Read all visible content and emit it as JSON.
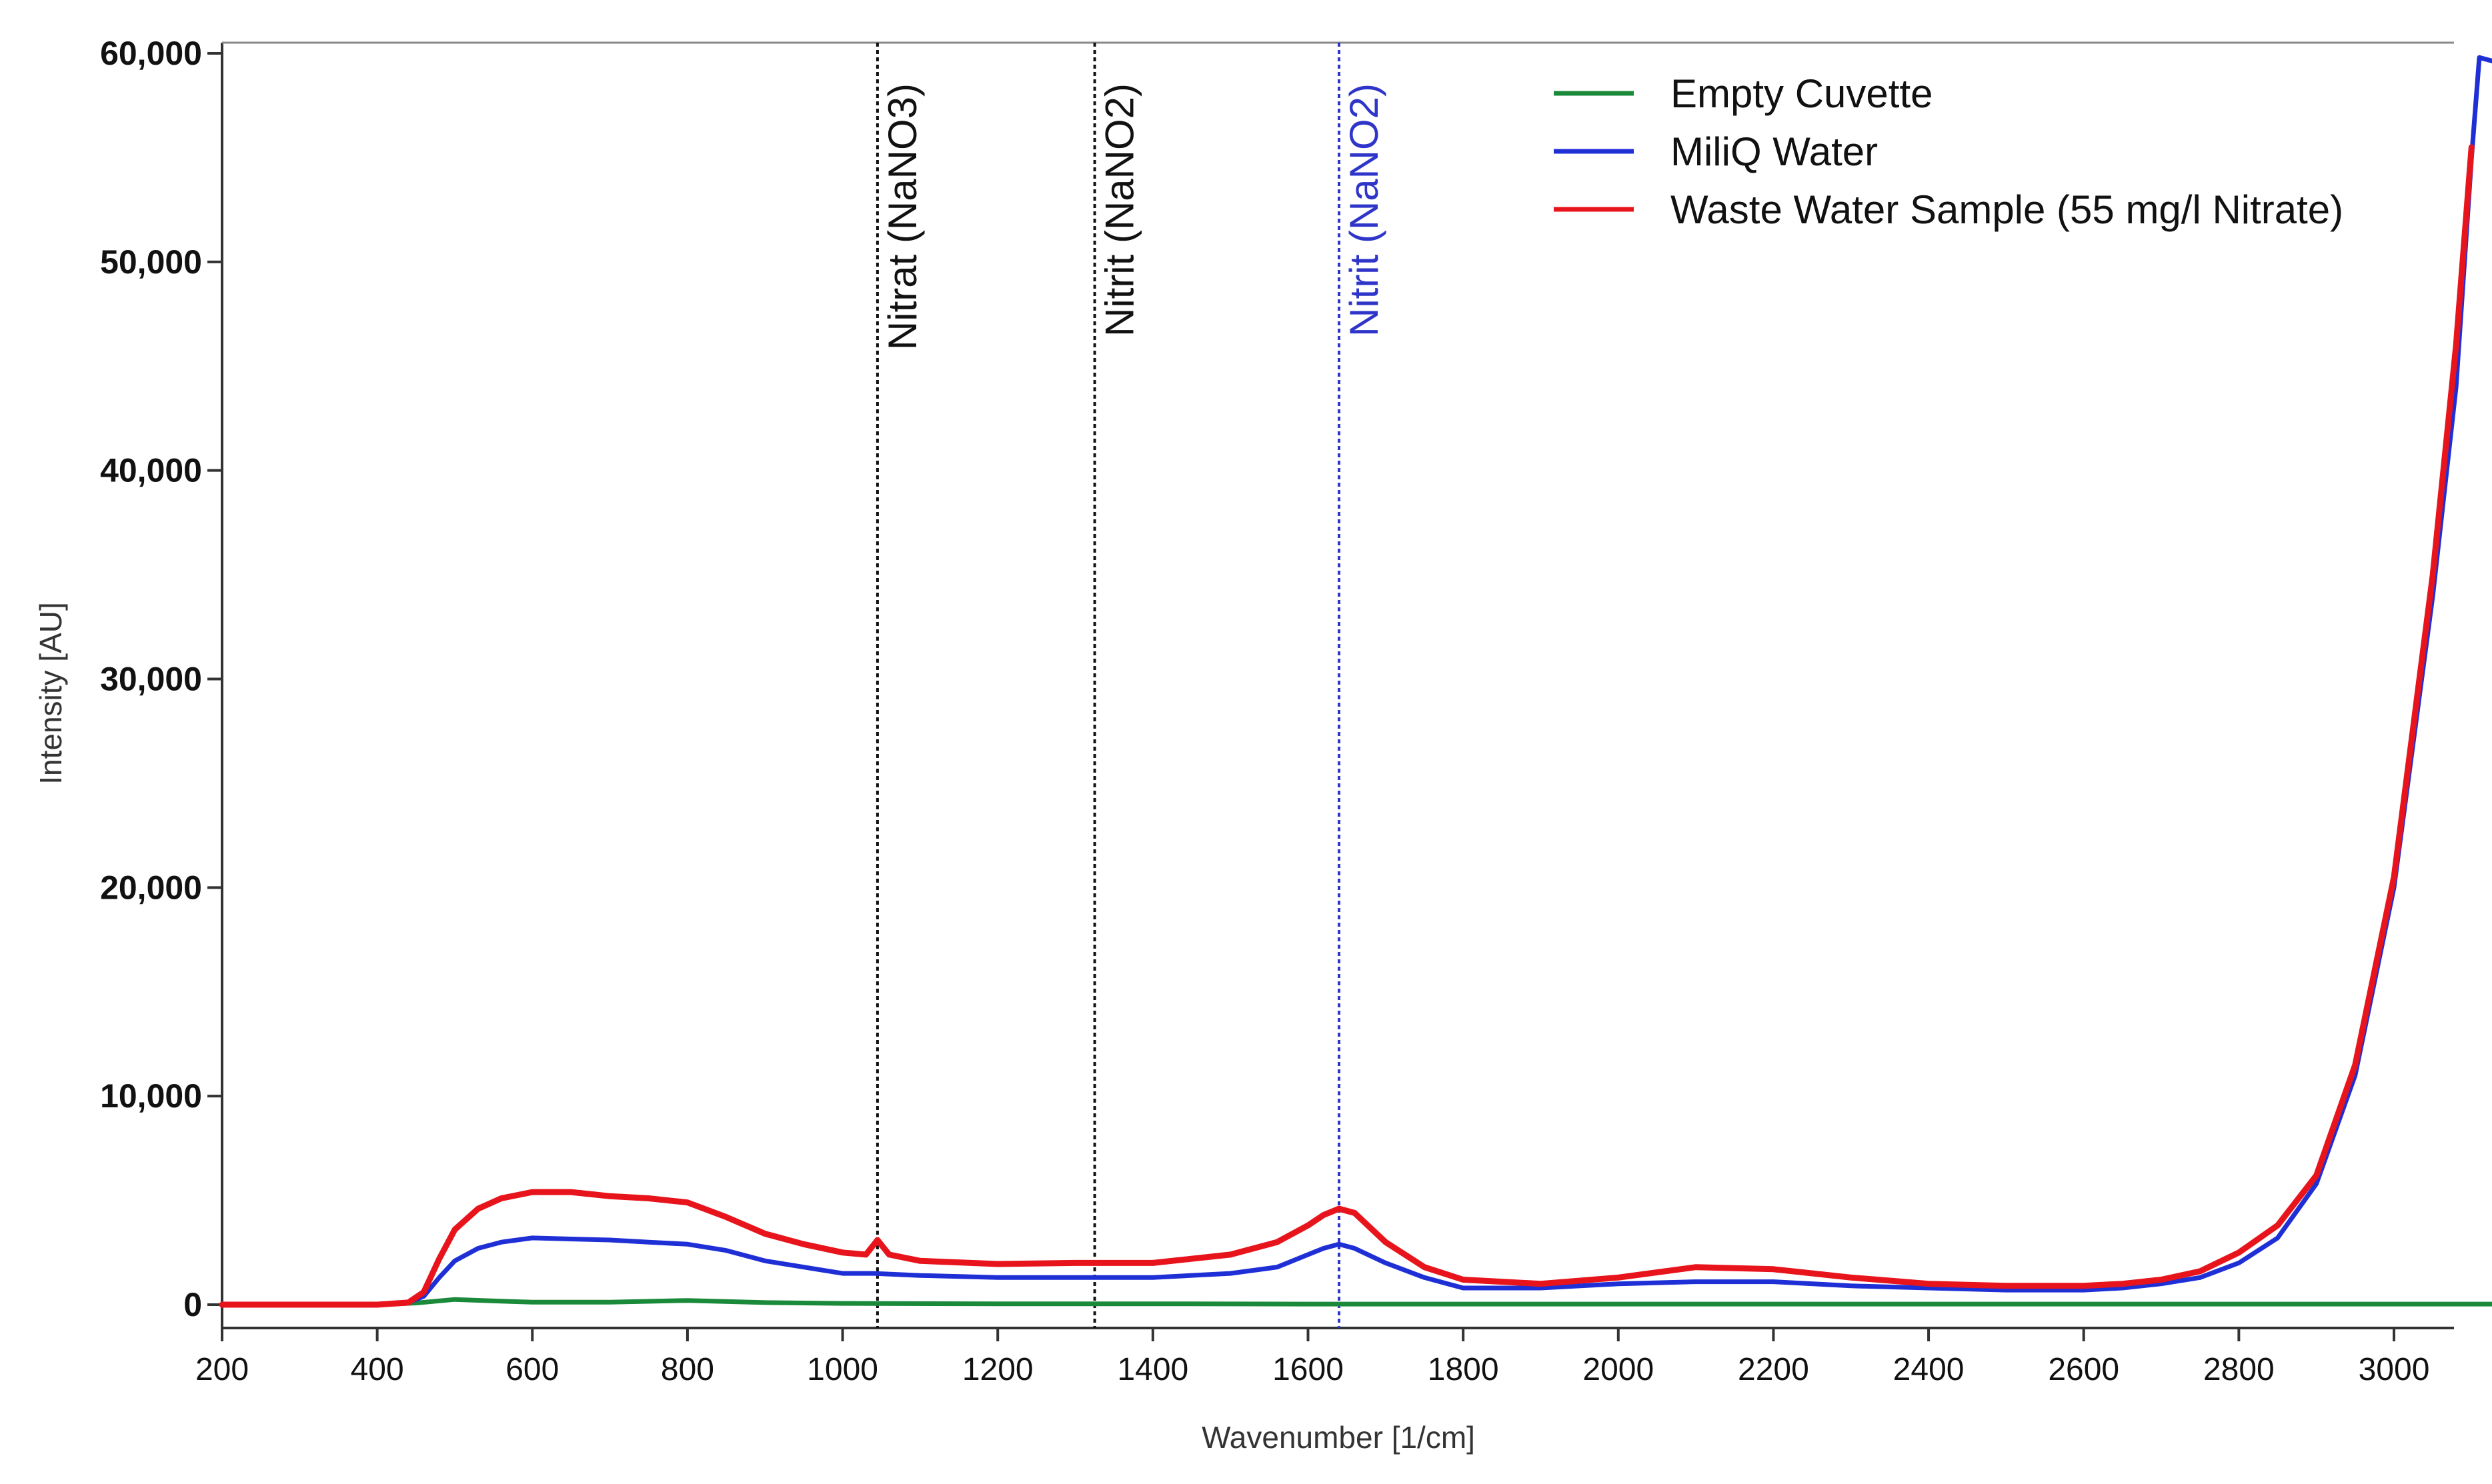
{
  "chart_data": {
    "type": "line",
    "title": "",
    "xlabel": "Wavenumber [1/cm]",
    "ylabel": "Intensity [AU]",
    "xlim": [
      200,
      3150
    ],
    "ylim": [
      -800,
      60300
    ],
    "x_ticks": [
      200,
      400,
      600,
      800,
      1000,
      1200,
      1400,
      1600,
      1800,
      2000,
      2200,
      2400,
      2600,
      2800,
      3000
    ],
    "y_ticks": [
      0,
      10000,
      20000,
      30000,
      40000,
      50000,
      60000
    ],
    "y_tick_labels": [
      "0",
      "10,000",
      "20,000",
      "30,000",
      "40,000",
      "50,000",
      "60,000"
    ],
    "grid": false,
    "legend_position": "top-right",
    "series": [
      {
        "name": "Empty Cuvette",
        "color": "#1a8a3a",
        "x": [
          200,
          400,
          450,
          500,
          550,
          600,
          700,
          800,
          900,
          1000,
          1200,
          1400,
          1600,
          1800,
          2000,
          2200,
          2400,
          2600,
          2800,
          3000,
          3140
        ],
        "y": [
          0,
          0,
          80,
          250,
          180,
          120,
          120,
          200,
          100,
          60,
          40,
          40,
          30,
          30,
          30,
          30,
          30,
          30,
          30,
          30,
          30
        ]
      },
      {
        "name": "MiliQ Water",
        "color": "#1f2fd6",
        "x": [
          200,
          400,
          440,
          460,
          480,
          500,
          530,
          560,
          600,
          650,
          700,
          750,
          800,
          850,
          900,
          950,
          1000,
          1040,
          1100,
          1200,
          1300,
          1400,
          1500,
          1560,
          1600,
          1620,
          1640,
          1660,
          1700,
          1750,
          1800,
          1900,
          2000,
          2100,
          2200,
          2300,
          2400,
          2500,
          2600,
          2650,
          2700,
          2750,
          2800,
          2850,
          2900,
          2950,
          3000,
          3050,
          3080,
          3100,
          3110,
          3140
        ],
        "y": [
          0,
          0,
          100,
          400,
          1300,
          2100,
          2700,
          3000,
          3200,
          3150,
          3100,
          3000,
          2900,
          2600,
          2100,
          1800,
          1500,
          1500,
          1400,
          1300,
          1300,
          1300,
          1500,
          1800,
          2400,
          2700,
          2900,
          2700,
          2000,
          1300,
          800,
          800,
          1000,
          1100,
          1100,
          900,
          800,
          700,
          700,
          800,
          1000,
          1300,
          2000,
          3200,
          5800,
          11000,
          20000,
          34000,
          44000,
          55000,
          59800,
          59500
        ]
      },
      {
        "name": "Waste Water Sample (55 mg/l Nitrate)",
        "color": "#e8141c",
        "x": [
          200,
          400,
          440,
          460,
          480,
          500,
          530,
          560,
          600,
          650,
          700,
          750,
          800,
          850,
          900,
          950,
          1000,
          1030,
          1045,
          1060,
          1100,
          1200,
          1300,
          1400,
          1500,
          1560,
          1600,
          1620,
          1640,
          1660,
          1700,
          1750,
          1800,
          1900,
          2000,
          2100,
          2200,
          2300,
          2400,
          2500,
          2600,
          2650,
          2700,
          2750,
          2800,
          2850,
          2900,
          2950,
          3000,
          3050,
          3080,
          3100
        ],
        "y": [
          0,
          0,
          100,
          600,
          2200,
          3600,
          4600,
          5100,
          5400,
          5400,
          5200,
          5100,
          4900,
          4200,
          3400,
          2900,
          2500,
          2400,
          3100,
          2400,
          2100,
          1950,
          2000,
          2000,
          2400,
          3000,
          3800,
          4300,
          4600,
          4400,
          3000,
          1800,
          1200,
          1000,
          1300,
          1800,
          1700,
          1300,
          1000,
          900,
          900,
          1000,
          1200,
          1600,
          2500,
          3800,
          6200,
          11500,
          20500,
          35000,
          46000,
          55500
        ]
      }
    ],
    "annotations": [
      {
        "label": "Nitrat (NaNO3)",
        "x": 1045,
        "color": "#111111"
      },
      {
        "label": "Nitrit (NaNO2)",
        "x": 1325,
        "color": "#111111"
      },
      {
        "label": "Nitrit (NaNO2)",
        "x": 1640,
        "color": "#2e35c8"
      }
    ]
  }
}
